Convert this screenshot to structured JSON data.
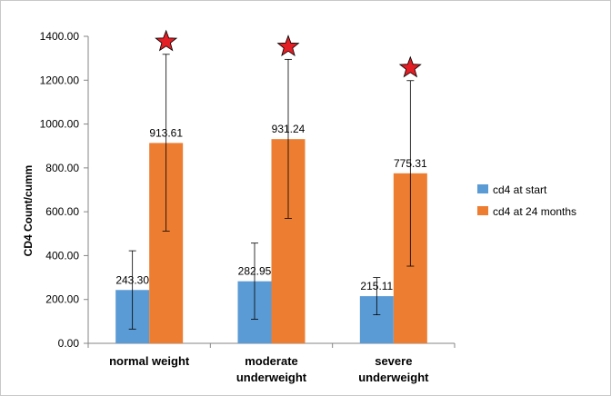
{
  "chart_data": {
    "type": "bar",
    "title": "",
    "xlabel": "",
    "ylabel": "CD4 Count/cumm",
    "ylim": [
      0,
      1400
    ],
    "ytick_step": 200,
    "ytick_labels": [
      "0.00",
      "200.00",
      "400.00",
      "600.00",
      "800.00",
      "1000.00",
      "1200.00",
      "1400.00"
    ],
    "categories": [
      [
        "normal weight"
      ],
      [
        "moderate",
        "underweight"
      ],
      [
        "severe",
        "underweight"
      ]
    ],
    "series": [
      {
        "name": "cd4 at start",
        "color": "#5b9bd5",
        "values": [
          243.3,
          282.95,
          215.11
        ],
        "labels": [
          "243.30",
          "282.95",
          "215.11"
        ],
        "error_low": [
          65,
          110,
          130
        ],
        "error_high": [
          422,
          457,
          300
        ]
      },
      {
        "name": "cd4 at 24 months",
        "color": "#ed7d31",
        "values": [
          913.61,
          931.24,
          775.31
        ],
        "labels": [
          "913.61",
          "931.24",
          "775.31"
        ],
        "error_low": [
          512,
          570,
          352
        ],
        "error_high": [
          1318,
          1295,
          1198
        ]
      }
    ],
    "significance_marker": {
      "symbol": "star",
      "color": "#e31e24",
      "categories": [
        0,
        1,
        2
      ]
    },
    "legend_position": "right",
    "grid": false
  }
}
